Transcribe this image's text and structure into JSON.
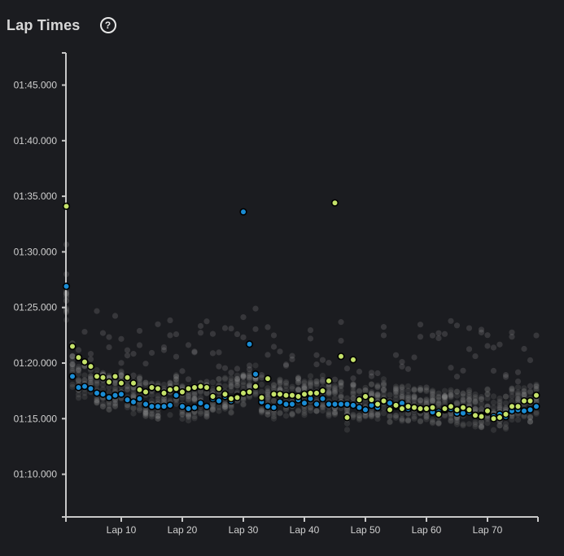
{
  "header": {
    "title": "Lap Times",
    "help_icon": "question-circle-icon",
    "help_glyph": "?"
  },
  "colors": {
    "background": "#1b1c20",
    "axis": "#c8c8c8",
    "series_a": "#c5e26a",
    "series_b": "#1a8cd4",
    "field": "#9a9a9a",
    "marker_stroke": "#000000"
  },
  "chart_data": {
    "type": "scatter",
    "title": "",
    "xlabel": "",
    "ylabel": "",
    "x_unit": "lap",
    "y_unit": "seconds",
    "xlim": [
      0,
      78
    ],
    "ylim": [
      66,
      108
    ],
    "grid": false,
    "x_ticks": [
      {
        "value": 10,
        "label": "Lap 10"
      },
      {
        "value": 20,
        "label": "Lap 20"
      },
      {
        "value": 30,
        "label": "Lap 30"
      },
      {
        "value": 40,
        "label": "Lap 40"
      },
      {
        "value": 50,
        "label": "Lap 50"
      },
      {
        "value": 60,
        "label": "Lap 60"
      },
      {
        "value": 70,
        "label": "Lap 70"
      }
    ],
    "y_ticks": [
      {
        "value": 70,
        "label": "01:10.000"
      },
      {
        "value": 75,
        "label": "01:15.000"
      },
      {
        "value": 80,
        "label": "01:20.000"
      },
      {
        "value": 85,
        "label": "01:25.000"
      },
      {
        "value": 90,
        "label": "01:30.000"
      },
      {
        "value": 95,
        "label": "01:35.000"
      },
      {
        "value": 100,
        "label": "01:40.000"
      },
      {
        "value": 105,
        "label": "01:45.000"
      }
    ],
    "series": [
      {
        "color": "#c5e26a",
        "x": [
          1,
          2,
          3,
          4,
          5,
          6,
          7,
          8,
          9,
          10,
          11,
          12,
          13,
          14,
          15,
          16,
          17,
          18,
          19,
          20,
          21,
          22,
          23,
          24,
          25,
          26,
          27,
          28,
          29,
          30,
          31,
          32,
          33,
          34,
          35,
          36,
          37,
          38,
          39,
          40,
          41,
          42,
          43,
          44,
          45,
          46,
          47,
          48,
          49,
          50,
          51,
          52,
          53,
          54,
          55,
          56,
          57,
          58,
          59,
          60,
          61,
          62,
          63,
          64,
          65,
          66,
          67,
          68,
          69,
          70,
          71,
          72,
          73,
          74,
          75,
          76,
          77,
          78
        ],
        "y": [
          94.1,
          81.5,
          80.5,
          80.1,
          79.7,
          78.8,
          78.7,
          78.3,
          78.8,
          78.2,
          78.7,
          78.2,
          77.6,
          77.4,
          77.8,
          77.7,
          77.3,
          77.6,
          77.7,
          77.4,
          77.7,
          77.8,
          77.9,
          77.8,
          77.0,
          77.7,
          77.2,
          76.8,
          76.9,
          77.3,
          77.4,
          77.9,
          76.9,
          78.6,
          77.2,
          77.2,
          77.1,
          77.1,
          77.0,
          77.2,
          77.3,
          77.3,
          77.5,
          78.4,
          94.4,
          80.6,
          75.1,
          80.3,
          76.7,
          77.0,
          76.7,
          76.3,
          76.6,
          75.8,
          76.2,
          75.9,
          76.1,
          76.0,
          75.9,
          75.9,
          76.0,
          75.4,
          75.9,
          76.1,
          75.8,
          76.0,
          75.8,
          75.3,
          75.2,
          75.7,
          75.0,
          75.1,
          75.4,
          76.1,
          76.1,
          76.6,
          76.6,
          77.1
        ]
      },
      {
        "color": "#1a8cd4",
        "x": [
          1,
          2,
          3,
          4,
          5,
          6,
          7,
          8,
          9,
          10,
          11,
          12,
          13,
          14,
          15,
          16,
          17,
          18,
          19,
          20,
          21,
          22,
          23,
          24,
          25,
          26,
          27,
          28,
          29,
          30,
          31,
          32,
          33,
          34,
          35,
          36,
          37,
          38,
          39,
          40,
          41,
          42,
          43,
          44,
          45,
          46,
          47,
          48,
          49,
          50,
          51,
          52,
          53,
          54,
          55,
          56,
          57,
          58,
          59,
          60,
          61,
          62,
          63,
          64,
          65,
          66,
          67,
          68,
          69,
          70,
          71,
          72,
          73,
          74,
          75,
          76,
          77,
          78
        ],
        "y": [
          86.9,
          78.8,
          77.8,
          77.9,
          77.7,
          77.3,
          77.2,
          76.9,
          77.1,
          77.2,
          76.7,
          76.5,
          76.8,
          76.3,
          76.1,
          76.1,
          76.1,
          76.2,
          77.1,
          76.1,
          75.9,
          76.0,
          76.4,
          76.1,
          76.8,
          76.6,
          77.0,
          76.6,
          77.0,
          93.6,
          81.7,
          79.0,
          76.5,
          76.1,
          76.0,
          76.5,
          76.3,
          76.3,
          76.7,
          76.4,
          76.8,
          76.3,
          76.8,
          76.3,
          76.3,
          76.3,
          76.3,
          76.2,
          76.0,
          75.8,
          76.2,
          76.0,
          76.6,
          76.4,
          76.1,
          76.4,
          75.9,
          76.0,
          75.8,
          75.9,
          75.6,
          75.6,
          75.8,
          75.9,
          75.5,
          75.5,
          75.6,
          75.3,
          75.3,
          75.6,
          75.2,
          75.4,
          75.2,
          75.7,
          75.8,
          75.7,
          75.8,
          76.1
        ]
      }
    ]
  }
}
